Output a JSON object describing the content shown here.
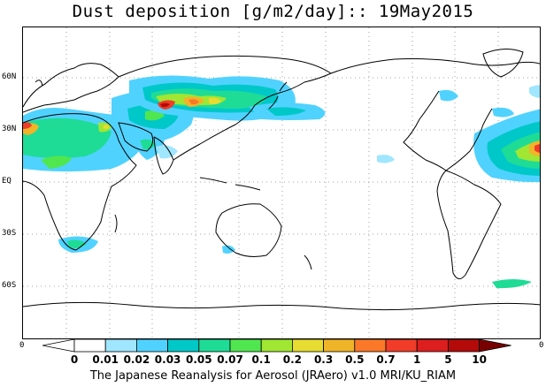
{
  "title": "Dust deposition [g/m2/day]:: 19May2015",
  "footer": "The Japanese Reanalysis for Aerosol (JRAero) v1.0 MRI/KU_RIAM",
  "lat_labels": [
    "60N",
    "30N",
    "EQ",
    "30S",
    "60S"
  ],
  "lon_labels": {
    "left": "0",
    "right": "0"
  },
  "colorbar": {
    "labels": [
      "0",
      "0.01",
      "0.02",
      "0.03",
      "0.05",
      "0.07",
      "0.1",
      "0.2",
      "0.3",
      "0.5",
      "0.7",
      "1",
      "5",
      "10"
    ],
    "colors": [
      "#ffffff",
      "#ffffff",
      "#a0e6ff",
      "#50d2ff",
      "#00c8c8",
      "#1edc96",
      "#50e650",
      "#a0e632",
      "#e6dc32",
      "#f0b428",
      "#fa7828",
      "#f03c28",
      "#dc1e1e",
      "#b40a0a",
      "#780000"
    ]
  },
  "map": {
    "background": "#ffffff",
    "coast_color": "#000000",
    "grid_color": "#888888"
  }
}
